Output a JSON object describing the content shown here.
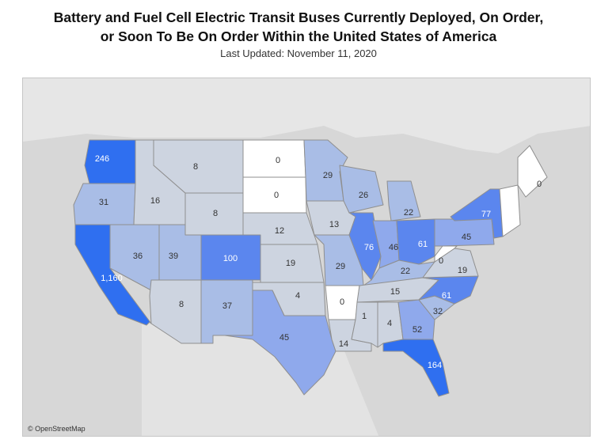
{
  "header": {
    "title_line1": "Battery and Fuel Cell Electric Transit Buses Currently Deployed, On Order,",
    "title_line2": "or Soon To Be On Order Within the United States of America",
    "subtitle": "Last Updated: November 11, 2020"
  },
  "map": {
    "attribution": "© OpenStreetMap",
    "colors": {
      "zero": "#ffffff",
      "low": "#cdd4e0",
      "mid": "#a9bde6",
      "mid2": "#8fa9ec",
      "high": "#5b86ee",
      "top": "#2f6ff0"
    },
    "states": [
      {
        "id": "WA",
        "label": "246"
      },
      {
        "id": "OR",
        "label": "31"
      },
      {
        "id": "CA",
        "label": "1,160"
      },
      {
        "id": "ID",
        "label": "16"
      },
      {
        "id": "NV",
        "label": "36"
      },
      {
        "id": "MT",
        "label": "8"
      },
      {
        "id": "WY",
        "label": "8"
      },
      {
        "id": "UT",
        "label": "39"
      },
      {
        "id": "AZ",
        "label": "8"
      },
      {
        "id": "CO",
        "label": "100"
      },
      {
        "id": "NM",
        "label": "37"
      },
      {
        "id": "ND",
        "label": "0"
      },
      {
        "id": "SD",
        "label": "0"
      },
      {
        "id": "NE",
        "label": "12"
      },
      {
        "id": "KS",
        "label": "19"
      },
      {
        "id": "OK",
        "label": "4"
      },
      {
        "id": "TX",
        "label": "45"
      },
      {
        "id": "MN",
        "label": "29"
      },
      {
        "id": "IA",
        "label": "13"
      },
      {
        "id": "MO",
        "label": "29"
      },
      {
        "id": "AR",
        "label": "0"
      },
      {
        "id": "LA",
        "label": "14"
      },
      {
        "id": "WI",
        "label": "26"
      },
      {
        "id": "IL",
        "label": "76"
      },
      {
        "id": "MI",
        "label": "22"
      },
      {
        "id": "IN",
        "label": "46"
      },
      {
        "id": "OH",
        "label": "61"
      },
      {
        "id": "KY",
        "label": "22"
      },
      {
        "id": "TN",
        "label": "15"
      },
      {
        "id": "MS",
        "label": "1"
      },
      {
        "id": "AL",
        "label": "4"
      },
      {
        "id": "GA",
        "label": "52"
      },
      {
        "id": "FL",
        "label": "164"
      },
      {
        "id": "SC",
        "label": "32"
      },
      {
        "id": "NC",
        "label": "61"
      },
      {
        "id": "VA",
        "label": "19"
      },
      {
        "id": "WV",
        "label": "0"
      },
      {
        "id": "PA",
        "label": "45"
      },
      {
        "id": "NY",
        "label": "77"
      },
      {
        "id": "ME",
        "label": "0"
      }
    ]
  }
}
